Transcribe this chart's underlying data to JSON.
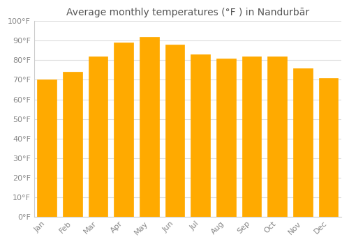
{
  "title": "Average monthly temperatures (°F ) in Nandurbār",
  "months": [
    "Jan",
    "Feb",
    "Mar",
    "Apr",
    "May",
    "Jun",
    "Jul",
    "Aug",
    "Sep",
    "Oct",
    "Nov",
    "Dec"
  ],
  "values": [
    70,
    74,
    82,
    89,
    92,
    88,
    83,
    81,
    82,
    82,
    76,
    71
  ],
  "bar_color": "#FFAA00",
  "bar_edge_color": "#FFAA00",
  "background_color": "#ffffff",
  "plot_bg_color": "#ffffff",
  "ylim": [
    0,
    100
  ],
  "yticks": [
    0,
    10,
    20,
    30,
    40,
    50,
    60,
    70,
    80,
    90,
    100
  ],
  "title_fontsize": 10,
  "tick_fontsize": 8,
  "grid_color": "#dddddd",
  "tick_color": "#888888",
  "title_color": "#555555"
}
